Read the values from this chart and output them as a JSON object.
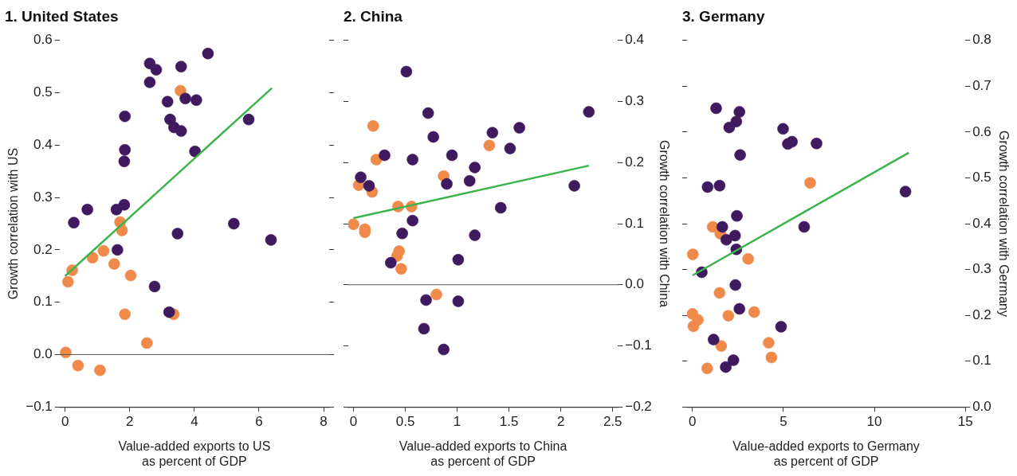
{
  "chart_data": [
    {
      "type": "scatter",
      "title": "1. United States",
      "xlabel": "Value-added exports to US\nas percent of GDP",
      "ylabel": "Growth correlation with US",
      "xlim": [
        -0.17,
        8.17
      ],
      "xticks": [
        0,
        2,
        4,
        6,
        8
      ],
      "ylim": [
        -0.1,
        0.6
      ],
      "yticks": [
        {
          "value": -0.1,
          "label": "−0.1"
        },
        {
          "value": 0,
          "label": "0.0"
        },
        0.1,
        0.2,
        0.3,
        0.4,
        0.5,
        0.6
      ],
      "marker": "circle",
      "legend": false,
      "grid": false,
      "ref_lines": [
        {
          "axis": "y",
          "value": 0,
          "color": "#555555"
        }
      ],
      "series": [
        {
          "color": "#3f1a5e",
          "x": [
            4.42,
            2.62,
            2.82,
            3.59,
            2.62,
            3.17,
            3.72,
            4.06,
            1.85,
            3.25,
            3.37,
            3.59,
            5.68,
            1.85,
            4.02,
            1.83,
            0.69,
            1.59,
            1.83,
            0.27,
            5.22,
            3.48,
            6.37,
            1.62,
            2.77,
            3.22
          ],
          "values": [
            0.575,
            0.556,
            0.544,
            0.55,
            0.52,
            0.483,
            0.489,
            0.486,
            0.455,
            0.449,
            0.434,
            0.427,
            0.449,
            0.391,
            0.388,
            0.369,
            0.277,
            0.277,
            0.286,
            0.252,
            0.25,
            0.231,
            0.219,
            0.2,
            0.13,
            0.081
          ]
        },
        {
          "color": "#f08a4b",
          "x": [
            3.57,
            1.7,
            1.76,
            0.22,
            0.09,
            0.85,
            1.19,
            1.52,
            2.03,
            1.85,
            3.36,
            2.53,
            0.02,
            0.4,
            1.08
          ],
          "values": [
            0.504,
            0.253,
            0.237,
            0.161,
            0.139,
            0.185,
            0.198,
            0.173,
            0.151,
            0.077,
            0.077,
            0.022,
            0.004,
            -0.021,
            -0.03
          ]
        },
        {
          "type": "line",
          "color": "#3cb44b",
          "marker": "none",
          "x": [
            0,
            6.4
          ],
          "values": [
            0.15,
            0.509
          ]
        }
      ]
    },
    {
      "type": "scatter",
      "title": "2. China",
      "xlabel": "Value-added exports to China\nas percent of GDP",
      "y2label": "Growth correlation with China",
      "xlim": [
        -0.05,
        2.55
      ],
      "xticks": [
        0,
        0.5,
        1,
        1.5,
        2,
        2.5
      ],
      "y2lim": [
        -0.2,
        0.4
      ],
      "y2ticks": [
        {
          "value": -0.2,
          "label": "−0.2"
        },
        {
          "value": -0.1,
          "label": "−0.1"
        },
        {
          "value": 0,
          "label": "0.0"
        },
        0.1,
        0.2,
        0.3,
        0.4
      ],
      "marker": "circle",
      "legend": false,
      "grid": false,
      "ref_lines": [
        {
          "axis": "y2",
          "value": 0,
          "color": "#555555"
        }
      ],
      "series": [
        {
          "color": "#3f1a5e",
          "axis": "y2",
          "x": [
            0.51,
            0.72,
            2.27,
            0.77,
            1.34,
            1.6,
            1.51,
            0.3,
            0.95,
            0.57,
            1.17,
            0.07,
            0.15,
            0.9,
            1.12,
            2.13,
            1.42,
            0.57,
            0.47,
            1.17,
            0.36,
            1.01,
            0.7,
            1.01,
            0.68,
            0.87
          ],
          "values": [
            0.349,
            0.281,
            0.283,
            0.242,
            0.249,
            0.257,
            0.223,
            0.212,
            0.212,
            0.205,
            0.192,
            0.176,
            0.162,
            0.165,
            0.17,
            0.162,
            0.126,
            0.105,
            0.084,
            0.081,
            0.036,
            0.041,
            -0.025,
            -0.027,
            -0.072,
            -0.106
          ]
        },
        {
          "color": "#f08a4b",
          "axis": "y2",
          "x": [
            0.19,
            0.22,
            1.31,
            0.87,
            0.05,
            0.18,
            0.43,
            0.56,
            0,
            0.11,
            0.11,
            0.44,
            0.42,
            0.46,
            0.8
          ],
          "values": [
            0.26,
            0.205,
            0.228,
            0.178,
            0.163,
            0.152,
            0.128,
            0.128,
            0.099,
            0.091,
            0.086,
            0.055,
            0.047,
            0.026,
            -0.016
          ]
        },
        {
          "type": "line",
          "color": "#3cb44b",
          "marker": "none",
          "axis": "y2",
          "x": [
            0,
            2.27
          ],
          "values": [
            0.109,
            0.195
          ]
        }
      ]
    },
    {
      "type": "scatter",
      "title": "3. Germany",
      "xlabel": "Value-added exports to Germany\nas percent of GDP",
      "y2label": "Growth correlation with Germany",
      "xlim": [
        -0.3,
        15
      ],
      "xticks": [
        0,
        5,
        10,
        15
      ],
      "y2lim": [
        0,
        0.8
      ],
      "y2ticks": [
        {
          "value": 0,
          "label": "0.0"
        },
        0.1,
        0.2,
        0.3,
        0.4,
        0.5,
        0.6,
        0.7,
        0.8
      ],
      "marker": "circle",
      "legend": false,
      "grid": false,
      "series": [
        {
          "color": "#3f1a5e",
          "axis": "y2",
          "x": [
            1.3,
            2.58,
            2.41,
            2.02,
            4.98,
            5.24,
            5.47,
            6.82,
            2.62,
            0.83,
            1.49,
            11.71,
            2.44,
            6.14,
            1.64,
            2.34,
            1.86,
            2.41,
            0.51,
            2.36,
            2.58,
            4.87,
            1.16,
            2.25,
            1.83
          ],
          "values": [
            0.652,
            0.644,
            0.623,
            0.61,
            0.607,
            0.574,
            0.579,
            0.575,
            0.55,
            0.48,
            0.483,
            0.47,
            0.417,
            0.393,
            0.393,
            0.374,
            0.365,
            0.344,
            0.294,
            0.266,
            0.214,
            0.175,
            0.147,
            0.102,
            0.087
          ]
        },
        {
          "color": "#f08a4b",
          "axis": "y2",
          "x": [
            6.47,
            1.11,
            1.53,
            0.02,
            3.06,
            1.49,
            0,
            0.3,
            0.05,
            1.97,
            3.39,
            1.58,
            4.19,
            4.34,
            0.81
          ],
          "values": [
            0.489,
            0.393,
            0.378,
            0.333,
            0.323,
            0.249,
            0.203,
            0.19,
            0.176,
            0.199,
            0.207,
            0.133,
            0.14,
            0.108,
            0.084
          ]
        },
        {
          "type": "line",
          "color": "#3cb44b",
          "marker": "none",
          "axis": "y2",
          "x": [
            0,
            11.89
          ],
          "values": [
            0.287,
            0.555
          ]
        }
      ]
    }
  ]
}
